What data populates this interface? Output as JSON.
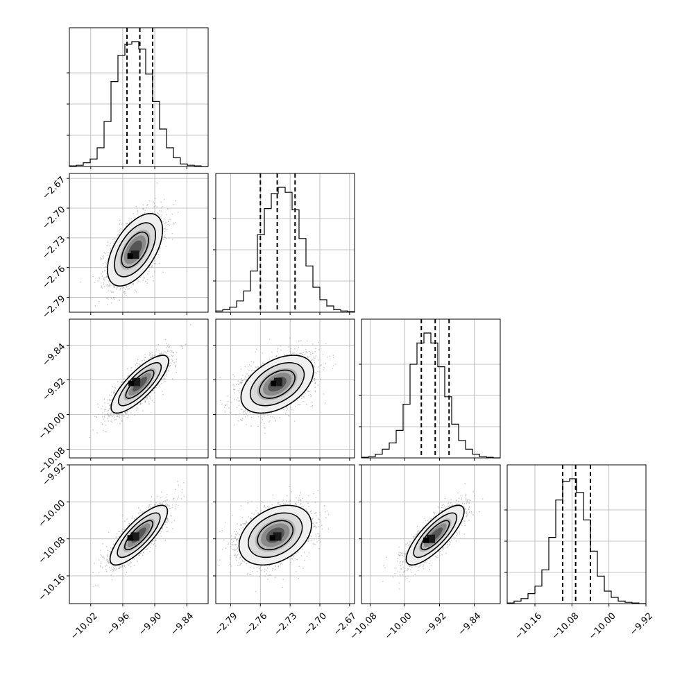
{
  "chart_data": {
    "type": "corner",
    "parameters": [
      {
        "index": 0,
        "range": [
          -10.06,
          -9.8
        ],
        "ticks": [
          -10.02,
          -9.96,
          -9.9,
          -9.84
        ],
        "tick_labels": [
          "−10.02",
          "−9.96",
          "−9.90",
          "−9.84"
        ],
        "quantiles": [
          -9.952,
          -9.928,
          -9.904
        ],
        "hist_counts": [
          0.005,
          0.01,
          0.03,
          0.06,
          0.15,
          0.36,
          0.68,
          0.89,
          0.98,
          1.0,
          0.94,
          0.74,
          0.52,
          0.3,
          0.15,
          0.07,
          0.02,
          0.01,
          0.005,
          0
        ]
      },
      {
        "index": 1,
        "range": [
          -2.805,
          -2.665
        ],
        "ticks": [
          -2.79,
          -2.76,
          -2.73,
          -2.7,
          -2.67
        ],
        "tick_labels": [
          "−2.79",
          "−2.76",
          "−2.73",
          "−2.70",
          "−2.67"
        ],
        "quantiles": [
          -2.76,
          -2.743,
          -2.725
        ],
        "hist_counts": [
          0.01,
          0.02,
          0.04,
          0.09,
          0.17,
          0.33,
          0.62,
          0.83,
          0.95,
          1.0,
          0.96,
          0.82,
          0.59,
          0.37,
          0.2,
          0.1,
          0.05,
          0.02,
          0.01,
          0.005
        ]
      },
      {
        "index": 2,
        "range": [
          -10.1,
          -9.78
        ],
        "ticks": [
          -10.08,
          -10.0,
          -9.92,
          -9.84
        ],
        "tick_labels": [
          "−10.08",
          "−10.00",
          "−9.92",
          "−9.84"
        ],
        "quantiles": [
          -9.962,
          -9.93,
          -9.898
        ],
        "hist_counts": [
          0.005,
          0.01,
          0.03,
          0.07,
          0.12,
          0.22,
          0.43,
          0.75,
          0.92,
          1.0,
          0.92,
          0.73,
          0.49,
          0.27,
          0.14,
          0.07,
          0.03,
          0.01,
          0.005,
          0
        ]
      },
      {
        "index": 3,
        "range": [
          -10.22,
          -9.92
        ],
        "ticks": [
          -10.16,
          -10.08,
          -10.0,
          -9.92
        ],
        "tick_labels": [
          "−10.16",
          "−10.08",
          "−10.00",
          "−9.92"
        ],
        "quantiles": [
          -10.1,
          -10.072,
          -10.04
        ],
        "hist_counts": [
          0.005,
          0.02,
          0.04,
          0.08,
          0.14,
          0.27,
          0.53,
          0.83,
          0.98,
          1.0,
          0.89,
          0.67,
          0.42,
          0.22,
          0.1,
          0.05,
          0.02,
          0.01,
          0.005,
          0
        ]
      }
    ],
    "pairs": [
      {
        "x": 0,
        "y": 1,
        "x_center": -9.937,
        "y_center": -2.742,
        "x_sigma": 0.024,
        "y_sigma": 0.017,
        "correlation": 0.55,
        "peak": [
          -9.937,
          -2.747
        ]
      },
      {
        "x": 0,
        "y": 2,
        "x_center": -9.928,
        "y_center": -9.93,
        "x_sigma": 0.025,
        "y_sigma": 0.031,
        "correlation": 0.8,
        "peak": [
          -9.935,
          -9.925
        ]
      },
      {
        "x": 1,
        "y": 2,
        "x_center": -2.743,
        "y_center": -9.93,
        "x_sigma": 0.017,
        "y_sigma": 0.031,
        "correlation": 0.45,
        "peak": [
          -2.742,
          -9.925
        ]
      },
      {
        "x": 0,
        "y": 3,
        "x_center": -9.93,
        "y_center": -10.072,
        "x_sigma": 0.025,
        "y_sigma": 0.03,
        "correlation": 0.8,
        "peak": [
          -9.937,
          -10.075
        ]
      },
      {
        "x": 1,
        "y": 3,
        "x_center": -2.745,
        "y_center": -10.072,
        "x_sigma": 0.017,
        "y_sigma": 0.03,
        "correlation": 0.35,
        "peak": [
          -2.743,
          -10.075
        ]
      },
      {
        "x": 2,
        "y": 3,
        "x_center": -9.93,
        "y_center": -10.072,
        "x_sigma": 0.031,
        "y_sigma": 0.03,
        "correlation": 0.8,
        "peak": [
          -9.94,
          -10.08
        ]
      }
    ],
    "contour_levels": [
      0.5,
      1.0,
      1.5
    ],
    "grid": true,
    "colors": {
      "points": "#a6a6a6",
      "contour": "#000000",
      "grid": "#b0b0b0",
      "quantile_line": "#000000"
    }
  }
}
